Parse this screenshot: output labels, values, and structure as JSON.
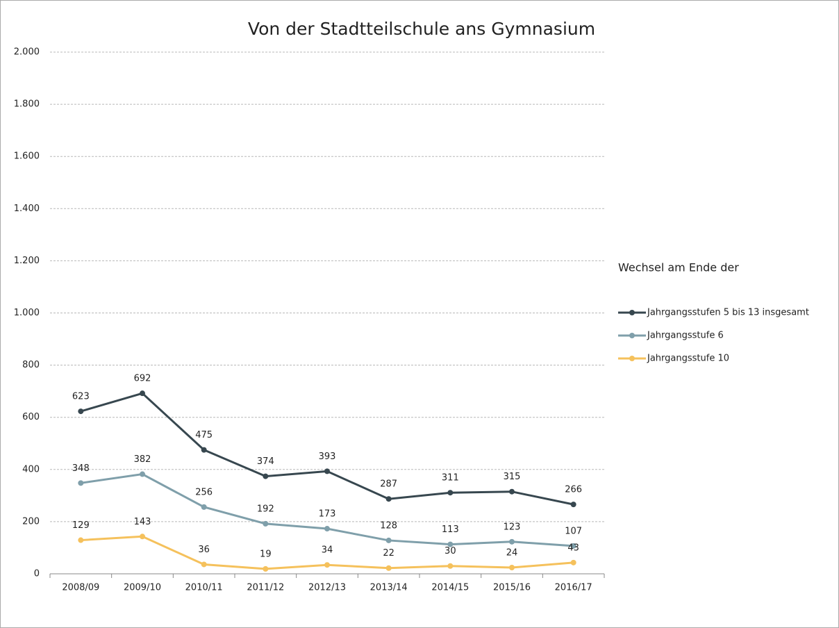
{
  "chart_data": {
    "type": "line",
    "title": "Von der Stadtteilschule ans Gymnasium",
    "categories": [
      "2008/09",
      "2009/10",
      "2010/11",
      "2011/12",
      "2012/13",
      "2013/14",
      "2014/15",
      "2015/16",
      "2016/17"
    ],
    "series": [
      {
        "name": "Jahrgangsstufen 5 bis 13 insgesamt",
        "color": "#37474f",
        "values": [
          623,
          692,
          475,
          374,
          393,
          287,
          311,
          315,
          266
        ]
      },
      {
        "name": "Jahrgangsstufe 6",
        "color": "#7f9faa",
        "values": [
          348,
          382,
          256,
          192,
          173,
          128,
          113,
          123,
          107
        ]
      },
      {
        "name": "Jahrgangsstufe 10",
        "color": "#f5c15c",
        "values": [
          129,
          143,
          36,
          19,
          34,
          22,
          30,
          24,
          43
        ]
      }
    ],
    "legend_title": "Wechsel am Ende der",
    "legend": "right",
    "ylim": [
      0,
      2000
    ],
    "yticks": [
      0,
      200,
      400,
      600,
      800,
      {
        "value": 1000,
        "label": "1.000"
      },
      {
        "value": 1200,
        "label": "1.200"
      },
      {
        "value": 1400,
        "label": "1.400"
      },
      {
        "value": 1600,
        "label": "1.600"
      },
      {
        "value": 1800,
        "label": "1.800"
      },
      {
        "value": 2000,
        "label": "2.000"
      }
    ],
    "grid": true
  }
}
